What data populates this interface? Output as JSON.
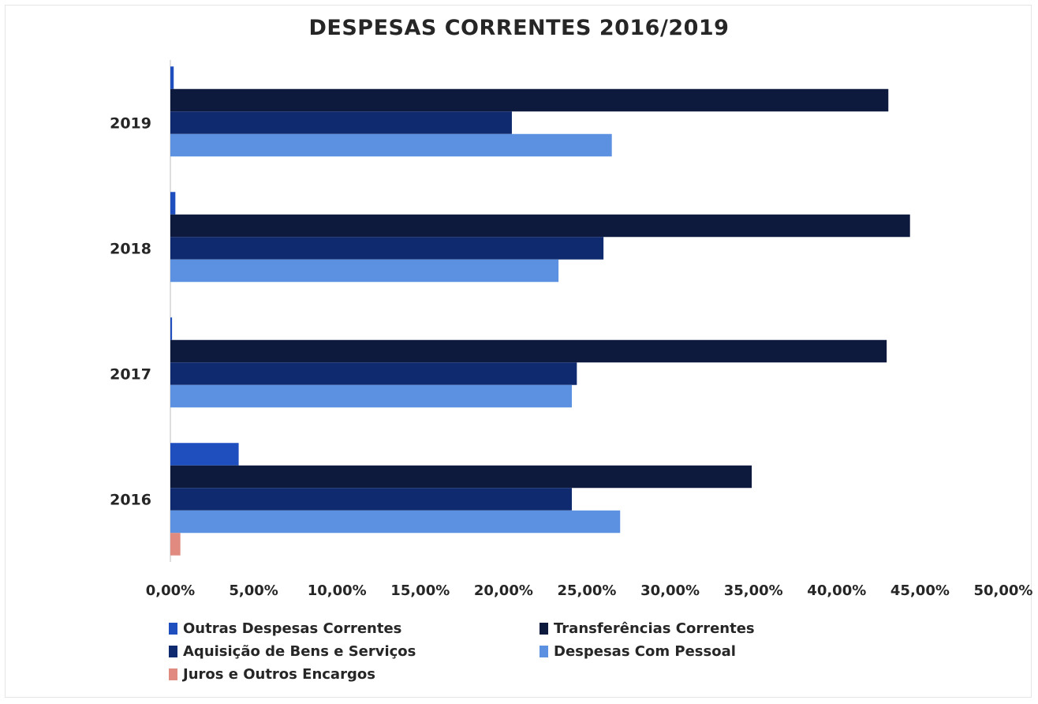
{
  "chart_data": {
    "type": "bar",
    "orientation": "horizontal",
    "title": "DESPESAS CORRENTES 2016/2019",
    "categories": [
      "2016",
      "2017",
      "2018",
      "2019"
    ],
    "xlim": [
      0,
      50
    ],
    "x_ticks": [
      "0,00%",
      "5,00%",
      "10,00%",
      "15,00%",
      "20,00%",
      "25,00%",
      "30,00%",
      "35,00%",
      "40,00%",
      "45,00%",
      "50,00%"
    ],
    "grid": false,
    "legend_position": "bottom",
    "series": [
      {
        "name": "Outras Despesas Correntes",
        "color": "#1f4fbf",
        "values": [
          4.1,
          0.1,
          0.3,
          0.2
        ]
      },
      {
        "name": "Transferências Correntes",
        "color": "#0d1a3d",
        "values": [
          34.9,
          43.0,
          44.4,
          43.1
        ]
      },
      {
        "name": "Aquisição de Bens e Serviços",
        "color": "#0f2a6e",
        "values": [
          24.1,
          24.4,
          26.0,
          20.5
        ]
      },
      {
        "name": "Despesas Com Pessoal",
        "color": "#5b91e0",
        "values": [
          27.0,
          24.1,
          23.3,
          26.5
        ]
      },
      {
        "name": "Juros e Outros Encargos",
        "color": "#e08a80",
        "values": [
          0.6,
          0,
          0,
          0
        ]
      }
    ]
  }
}
